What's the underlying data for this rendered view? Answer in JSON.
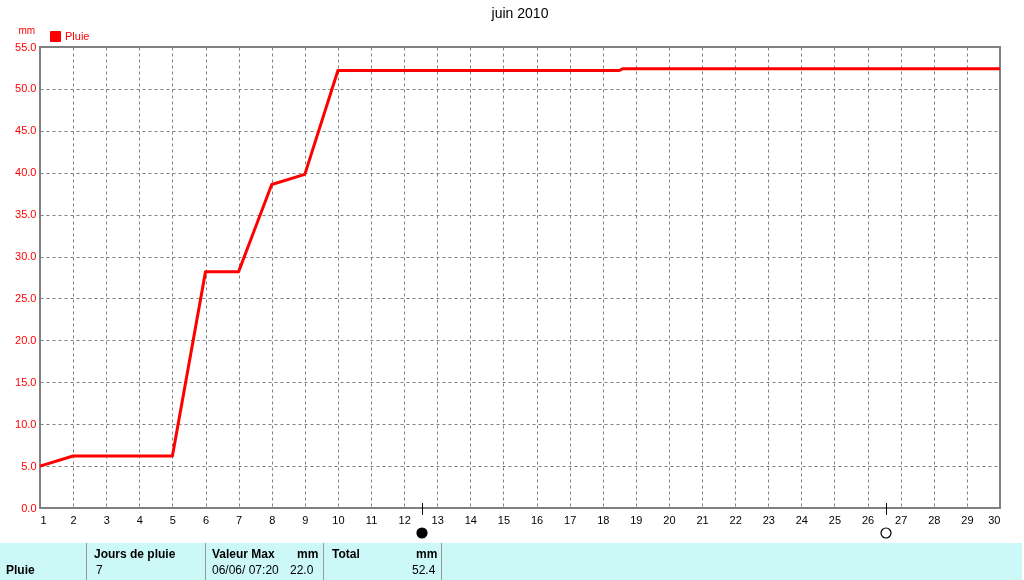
{
  "chart_data": {
    "type": "line",
    "title": "juin 2010",
    "ylabel": "mm",
    "x": [
      1,
      2,
      5,
      6,
      7,
      8,
      9,
      10,
      18.5,
      18.6,
      30
    ],
    "series": [
      {
        "name": "Pluie",
        "color": "#ff0000",
        "values": [
          5.0,
          6.2,
          6.2,
          28.2,
          28.2,
          38.6,
          39.8,
          52.2,
          52.2,
          52.4,
          52.4
        ]
      }
    ],
    "xlim": [
      1,
      30
    ],
    "xticks": [
      1,
      2,
      3,
      4,
      5,
      6,
      7,
      8,
      9,
      10,
      11,
      12,
      13,
      14,
      15,
      16,
      17,
      18,
      19,
      20,
      21,
      22,
      23,
      24,
      25,
      26,
      27,
      28,
      29,
      30
    ],
    "ylim": [
      0,
      55
    ],
    "yticks": [
      {
        "value": 0,
        "label": "0.0"
      },
      {
        "value": 5,
        "label": "5.0"
      },
      {
        "value": 10,
        "label": "10.0"
      },
      {
        "value": 15,
        "label": "15.0"
      },
      {
        "value": 20,
        "label": "20.0"
      },
      {
        "value": 25,
        "label": "25.0"
      },
      {
        "value": 30,
        "label": "30.0"
      },
      {
        "value": 35,
        "label": "35.0"
      },
      {
        "value": 40,
        "label": "40.0"
      },
      {
        "value": 45,
        "label": "45.0"
      },
      {
        "value": 50,
        "label": "50.0"
      },
      {
        "value": 55,
        "label": "55.0"
      }
    ],
    "grid": true,
    "legend": "top left",
    "marker": "none",
    "line_style": "solid",
    "annotations": [
      "Pluie",
      "Jours de pluie",
      "7",
      "Valeur Max",
      "mm",
      "06/06/ 07:20",
      "22.0",
      "Total",
      "mm",
      "52.4"
    ]
  }
}
